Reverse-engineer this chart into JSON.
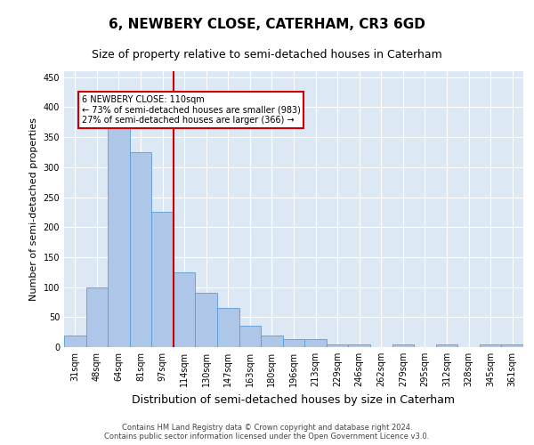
{
  "title": "6, NEWBERY CLOSE, CATERHAM, CR3 6GD",
  "subtitle": "Size of property relative to semi-detached houses in Caterham",
  "xlabel": "Distribution of semi-detached houses by size in Caterham",
  "ylabel": "Number of semi-detached properties",
  "footer_line1": "Contains HM Land Registry data © Crown copyright and database right 2024.",
  "footer_line2": "Contains public sector information licensed under the Open Government Licence v3.0.",
  "categories": [
    "31sqm",
    "48sqm",
    "64sqm",
    "81sqm",
    "97sqm",
    "114sqm",
    "130sqm",
    "147sqm",
    "163sqm",
    "180sqm",
    "196sqm",
    "213sqm",
    "229sqm",
    "246sqm",
    "262sqm",
    "279sqm",
    "295sqm",
    "312sqm",
    "328sqm",
    "345sqm",
    "361sqm"
  ],
  "values": [
    20,
    99,
    370,
    325,
    225,
    125,
    90,
    65,
    35,
    20,
    13,
    13,
    5,
    5,
    0,
    5,
    0,
    5,
    0,
    5,
    5
  ],
  "bar_color": "#aec6e8",
  "bar_edge_color": "#5b9bd5",
  "vline_color": "#cc0000",
  "annotation_title": "6 NEWBERY CLOSE: 110sqm",
  "annotation_line1": "← 73% of semi-detached houses are smaller (983)",
  "annotation_line2": "27% of semi-detached houses are larger (366) →",
  "annotation_box_color": "#ffffff",
  "annotation_box_edge_color": "#cc0000",
  "ylim": [
    0,
    460
  ],
  "background_color": "#dce9f5",
  "title_fontsize": 11,
  "subtitle_fontsize": 9,
  "footer_fontsize": 6,
  "ylabel_fontsize": 8,
  "xlabel_fontsize": 9,
  "tick_fontsize": 7
}
